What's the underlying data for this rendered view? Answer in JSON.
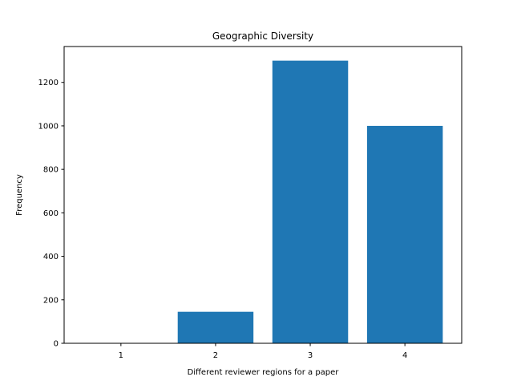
{
  "chart_data": {
    "type": "bar",
    "title": "Geographic Diversity",
    "xlabel": "Different reviewer regions for a paper",
    "ylabel": "Frequency",
    "categories": [
      "1",
      "2",
      "3",
      "4"
    ],
    "x": [
      1,
      2,
      3,
      4
    ],
    "values": [
      0,
      145,
      1300,
      1000
    ],
    "xlim": [
      0.4,
      4.6
    ],
    "ylim": [
      0,
      1365
    ],
    "yticks": [
      0,
      200,
      400,
      600,
      800,
      1000,
      1200
    ],
    "bar_color": "#1f77b4",
    "grid": false,
    "legend": "none"
  }
}
